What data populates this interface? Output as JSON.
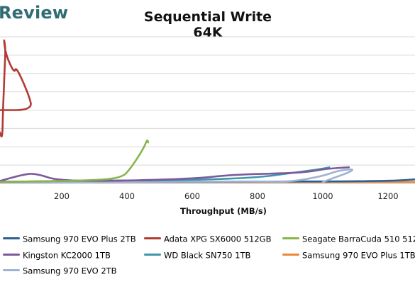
{
  "brand": {
    "text": "Review"
  },
  "chart_data": {
    "type": "line",
    "title": "Sequential Write 64K",
    "xlabel": "Throughput (MB/s)",
    "ylabel": "",
    "x_ticks": [
      200,
      400,
      600,
      800,
      1000,
      1200
    ],
    "xlim": [
      0,
      1300
    ],
    "ylim": [
      0,
      1
    ],
    "grid": "horizontal",
    "legend_position": "bottom",
    "series": [
      {
        "name": "Samsung 970 EVO Plus 2TB",
        "color": "#2f5f8f",
        "points": [
          [
            0,
            0.012
          ],
          [
            400,
            0.012
          ],
          [
            800,
            0.012
          ],
          [
            1200,
            0.015
          ],
          [
            1300,
            0.03
          ]
        ]
      },
      {
        "name": "Adata XPG SX6000 512GB",
        "color": "#b23a34",
        "points": [
          [
            10,
            0.35
          ],
          [
            18,
            0.3
          ],
          [
            20,
            0.5
          ],
          [
            22,
            0.6
          ],
          [
            25,
            0.78
          ],
          [
            28,
            0.92
          ],
          [
            22,
            1.0
          ],
          [
            28,
            0.88
          ],
          [
            55,
            0.75
          ],
          [
            60,
            0.8
          ],
          [
            100,
            0.6
          ],
          [
            110,
            0.5
          ],
          [
            0,
            0.5
          ]
        ]
      },
      {
        "name": "Seagate BarraCuda 510 512GB",
        "color": "#88b44a",
        "points": [
          [
            0,
            0.01
          ],
          [
            300,
            0.02
          ],
          [
            385,
            0.04
          ],
          [
            410,
            0.1
          ],
          [
            440,
            0.2
          ],
          [
            455,
            0.26
          ],
          [
            462,
            0.3
          ],
          [
            465,
            0.28
          ]
        ]
      },
      {
        "name": "Kingston KC2000 1TB",
        "color": "#7d5a9c",
        "points": [
          [
            0,
            0.01
          ],
          [
            80,
            0.06
          ],
          [
            120,
            0.07
          ],
          [
            200,
            0.01
          ],
          [
            600,
            0.03
          ],
          [
            720,
            0.06
          ],
          [
            900,
            0.07
          ],
          [
            960,
            0.08
          ],
          [
            1010,
            0.1
          ],
          [
            1080,
            0.11
          ]
        ]
      },
      {
        "name": "WD Black SN750 1TB",
        "color": "#3d96ad",
        "points": [
          [
            0,
            0.01
          ],
          [
            300,
            0.02
          ],
          [
            500,
            0.02
          ],
          [
            620,
            0.025
          ],
          [
            800,
            0.04
          ],
          [
            900,
            0.07
          ],
          [
            1000,
            0.1
          ],
          [
            1020,
            0.11
          ]
        ]
      },
      {
        "name": "Samsung 970 EVO Plus 1TB",
        "color": "#e8893a",
        "points": [
          [
            300,
            0.01
          ],
          [
            700,
            0.01
          ],
          [
            1000,
            0.01
          ],
          [
            1300,
            0.01
          ]
        ]
      },
      {
        "name": "Samsung 970 EVO 2TB",
        "color": "#9fb3d4",
        "points": [
          [
            0,
            0.008
          ],
          [
            400,
            0.01
          ],
          [
            800,
            0.015
          ],
          [
            900,
            0.01
          ],
          [
            1000,
            0.05
          ],
          [
            1050,
            0.09
          ],
          [
            1110,
            0.1
          ],
          [
            1000,
            0.01
          ]
        ]
      }
    ]
  }
}
